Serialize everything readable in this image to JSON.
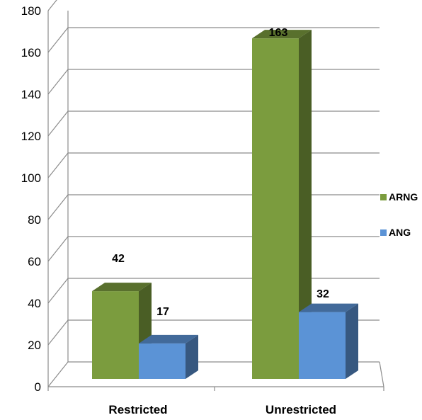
{
  "chart_data": {
    "type": "bar",
    "categories": [
      "Restricted",
      "Unrestricted"
    ],
    "series": [
      {
        "name": "ARNG",
        "values": [
          42,
          163
        ],
        "color": "#7b9c3e"
      },
      {
        "name": "ANG",
        "values": [
          17,
          32
        ],
        "color": "#5b93d6"
      }
    ],
    "ylim": [
      0,
      180
    ],
    "yticks": [
      "0",
      "20",
      "40",
      "60",
      "80",
      "100",
      "120",
      "140",
      "160",
      "180"
    ],
    "grid": true,
    "legend_position": "right",
    "data_labels": [
      "42",
      "17",
      "163",
      "32"
    ],
    "style": "3d-clustered-column"
  }
}
